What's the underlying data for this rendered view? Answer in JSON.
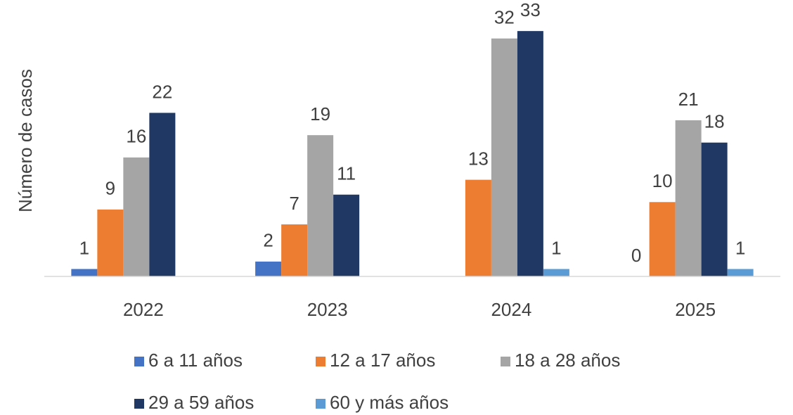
{
  "chart_data": {
    "type": "bar",
    "y_label": "Número de casos",
    "categories": [
      "2022",
      "2023",
      "2024",
      "2025"
    ],
    "series": [
      {
        "name": "6 a 11 años",
        "color": "#4472c4",
        "values": [
          1,
          2,
          null,
          0
        ]
      },
      {
        "name": "12 a 17 años",
        "color": "#ed7d31",
        "values": [
          9,
          7,
          13,
          10
        ]
      },
      {
        "name": "18 a 28 años",
        "color": "#a5a5a5",
        "values": [
          16,
          19,
          32,
          21
        ]
      },
      {
        "name": "29 a 59 años",
        "color": "#203864",
        "values": [
          22,
          11,
          33,
          18
        ]
      },
      {
        "name": "60 y más años",
        "color": "#5b9bd5",
        "values": [
          null,
          null,
          1,
          1
        ]
      }
    ],
    "ylim": [
      0,
      35
    ],
    "legend": "bottom"
  }
}
